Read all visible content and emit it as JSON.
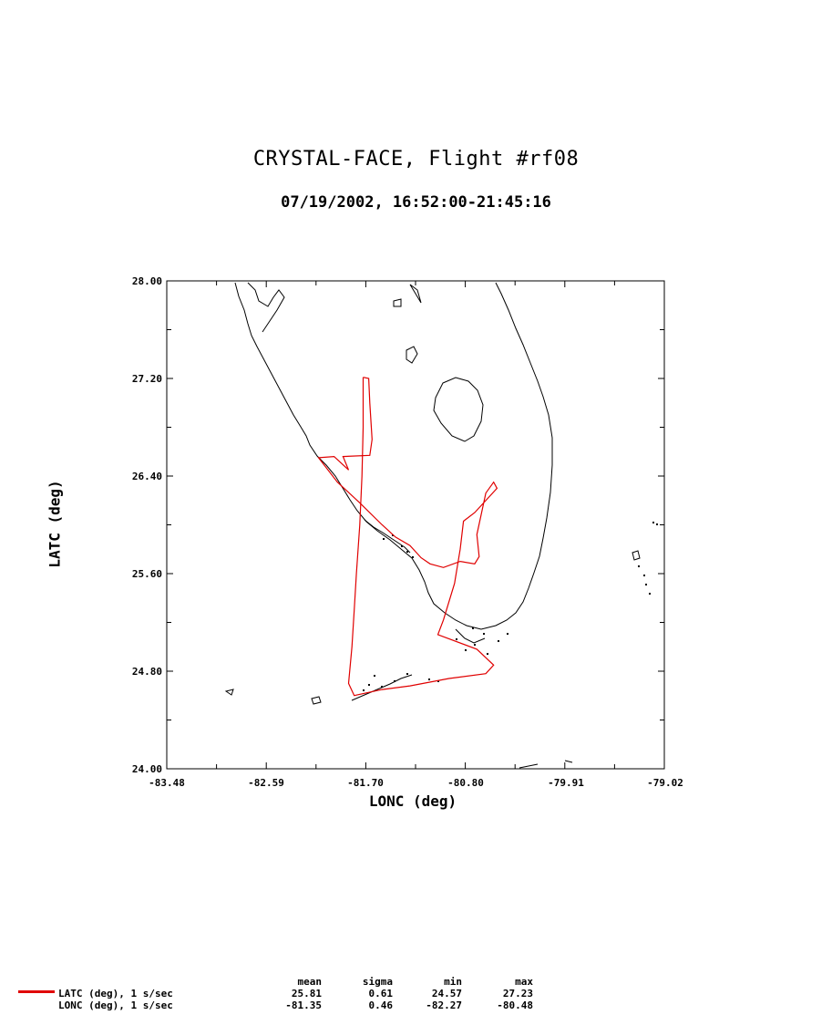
{
  "title": "CRYSTAL-FACE, Flight #rf08",
  "subtitle": "07/19/2002, 16:52:00-21:45:16",
  "axes": {
    "xlabel": "LONC (deg)",
    "ylabel": "LATC (deg)",
    "xticks": [
      "-83.48",
      "-82.59",
      "-81.70",
      "-80.80",
      "-79.91",
      "-79.02"
    ],
    "yticks": [
      "28.00",
      "27.20",
      "26.40",
      "25.60",
      "24.80",
      "24.00"
    ]
  },
  "chart_data": {
    "type": "line",
    "xlim": [
      -83.48,
      -79.02
    ],
    "ylim": [
      24.0,
      28.0
    ],
    "grid": false,
    "series": [
      {
        "name": "LATC (deg), 1 s/sec",
        "color": "#e00000",
        "points": [
          [
            -81.72,
            27.21
          ],
          [
            -81.67,
            27.2
          ],
          [
            -81.66,
            27.0
          ],
          [
            -81.64,
            26.7
          ],
          [
            -81.66,
            26.57
          ],
          [
            -81.9,
            26.56
          ],
          [
            -81.85,
            26.45
          ],
          [
            -81.98,
            26.56
          ],
          [
            -82.12,
            26.55
          ],
          [
            -81.95,
            26.35
          ],
          [
            -81.75,
            26.18
          ],
          [
            -81.55,
            26.0
          ],
          [
            -81.43,
            25.9
          ],
          [
            -81.3,
            25.83
          ],
          [
            -81.2,
            25.73
          ],
          [
            -81.12,
            25.68
          ],
          [
            -81.0,
            25.65
          ],
          [
            -80.85,
            25.7
          ],
          [
            -80.72,
            25.68
          ],
          [
            -80.68,
            25.74
          ],
          [
            -80.7,
            25.92
          ],
          [
            -80.62,
            26.26
          ],
          [
            -80.55,
            26.35
          ],
          [
            -80.52,
            26.3
          ],
          [
            -80.72,
            26.1
          ],
          [
            -80.82,
            26.03
          ],
          [
            -80.85,
            25.8
          ],
          [
            -80.9,
            25.52
          ],
          [
            -81.0,
            25.22
          ],
          [
            -81.05,
            25.1
          ],
          [
            -80.7,
            24.98
          ],
          [
            -80.55,
            24.85
          ],
          [
            -80.62,
            24.78
          ],
          [
            -80.95,
            24.74
          ],
          [
            -81.3,
            24.68
          ],
          [
            -81.55,
            24.65
          ],
          [
            -81.8,
            24.6
          ],
          [
            -81.85,
            24.7
          ],
          [
            -81.82,
            25.0
          ],
          [
            -81.8,
            25.3
          ],
          [
            -81.78,
            25.6
          ],
          [
            -81.75,
            26.0
          ],
          [
            -81.73,
            26.4
          ],
          [
            -81.72,
            26.8
          ],
          [
            -81.72,
            27.21
          ]
        ]
      }
    ],
    "stats": {
      "columns": [
        "mean",
        "sigma",
        "min",
        "max"
      ],
      "rows": [
        {
          "label": "LATC (deg), 1 s/sec",
          "values": [
            "25.81",
            "0.61",
            "24.57",
            "27.23"
          ]
        },
        {
          "label": "LONC (deg), 1 s/sec",
          "values": [
            "-81.35",
            "0.46",
            "-82.27",
            "-80.48"
          ]
        }
      ]
    }
  }
}
